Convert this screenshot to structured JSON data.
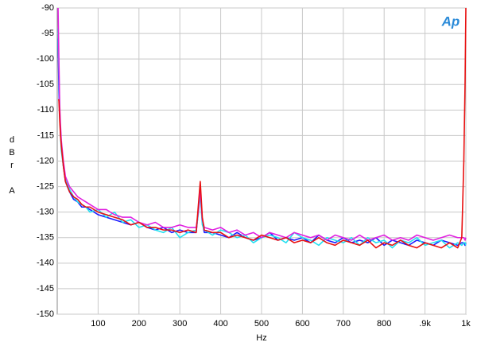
{
  "chart_data": {
    "type": "line",
    "logo": "Ap",
    "xlabel": "Hz",
    "ylabel": "dBr A",
    "xlim": [
      0,
      1000
    ],
    "ylim": [
      -150,
      -90
    ],
    "xticks": [
      100,
      200,
      300,
      400,
      500,
      600,
      700,
      800,
      {
        "value": 900,
        "label": ".9k"
      },
      {
        "value": 1000,
        "label": "1k"
      }
    ],
    "yticks": [
      -150,
      -145,
      -140,
      -135,
      -130,
      -125,
      -120,
      -115,
      -110,
      -105,
      -100,
      -95,
      -90
    ],
    "grid": true,
    "x": [
      2,
      4,
      6,
      8,
      10,
      15,
      20,
      30,
      40,
      50,
      60,
      70,
      80,
      100,
      120,
      140,
      160,
      180,
      200,
      220,
      240,
      260,
      280,
      300,
      320,
      340,
      345,
      350,
      355,
      360,
      380,
      400,
      420,
      440,
      460,
      480,
      500,
      520,
      540,
      560,
      580,
      600,
      620,
      640,
      660,
      680,
      700,
      720,
      740,
      760,
      780,
      800,
      820,
      840,
      860,
      880,
      900,
      920,
      940,
      960,
      980,
      990,
      995,
      998,
      1000
    ],
    "series": [
      {
        "name": "blue",
        "color": "#1a1aff",
        "values": [
          -96,
          -106,
          -111,
          -114,
          -117,
          -121,
          -124,
          -126,
          -127.5,
          -128,
          -129,
          -129,
          -129.5,
          -130.5,
          -131,
          -131.5,
          -132,
          -132.5,
          -132,
          -133,
          -133.5,
          -133,
          -134,
          -133.5,
          -134,
          -134,
          -130,
          -126,
          -132,
          -134,
          -134,
          -134.5,
          -135,
          -134,
          -135,
          -135.5,
          -135,
          -134,
          -135.5,
          -135,
          -135.5,
          -135,
          -136,
          -134.5,
          -135.5,
          -136,
          -135,
          -136,
          -135.5,
          -136,
          -135,
          -136.5,
          -135.5,
          -136,
          -136.5,
          -135.5,
          -136,
          -136.5,
          -135.5,
          -136,
          -136.5,
          -136,
          -136,
          -136.5,
          -136
        ]
      },
      {
        "name": "cyan",
        "color": "#22e0f0",
        "values": [
          -94,
          -102,
          -110,
          -115,
          -118,
          -121,
          -123.5,
          -125.5,
          -127,
          -128,
          -128.5,
          -129,
          -130,
          -129.5,
          -131,
          -130,
          -132,
          -131.5,
          -133,
          -132.5,
          -133.5,
          -134,
          -133,
          -135,
          -134,
          -133.5,
          -130.5,
          -126.5,
          -132.5,
          -133.5,
          -134.5,
          -133.5,
          -134,
          -135,
          -134.5,
          -136,
          -135,
          -134.5,
          -135,
          -136,
          -134,
          -135,
          -135.5,
          -136.5,
          -135,
          -135.5,
          -136,
          -135,
          -136.5,
          -135,
          -136,
          -135.5,
          -137,
          -135.5,
          -136,
          -135,
          -136.5,
          -136,
          -135.5,
          -137,
          -136,
          -136.5,
          -136,
          -136,
          -136.5
        ]
      },
      {
        "name": "magenta",
        "color": "#e020e0",
        "values": [
          -90,
          -100,
          -109,
          -113,
          -116,
          -120,
          -123,
          -125,
          -126,
          -127,
          -127.5,
          -128,
          -128.5,
          -129.5,
          -129.5,
          -130.5,
          -131,
          -131,
          -132,
          -132.5,
          -132,
          -133,
          -133,
          -132.5,
          -133,
          -133,
          -130,
          -125.5,
          -131.5,
          -133,
          -133.5,
          -133,
          -134,
          -133.5,
          -134.5,
          -134,
          -135,
          -134,
          -134.5,
          -135,
          -134,
          -134.5,
          -135,
          -134.5,
          -135.5,
          -134.5,
          -135,
          -135.5,
          -134.5,
          -135.5,
          -135,
          -134.5,
          -135.5,
          -135,
          -135.5,
          -134.5,
          -135,
          -135.5,
          -135,
          -134.5,
          -135,
          -135,
          -135,
          -135.5,
          -135
        ]
      },
      {
        "name": "red",
        "color": "#e81010",
        "values": [
          -108,
          -108,
          -112,
          -115,
          -117,
          -121,
          -124,
          -126,
          -127,
          -127.5,
          -128.5,
          -129,
          -129,
          -130,
          -130.5,
          -131,
          -131.5,
          -132.5,
          -132,
          -133,
          -133,
          -133.5,
          -133.5,
          -134,
          -133.5,
          -134,
          -129,
          -124,
          -131,
          -133.5,
          -134,
          -134,
          -135,
          -134.5,
          -135,
          -135.5,
          -134.5,
          -135,
          -135.5,
          -135,
          -136,
          -135.5,
          -136,
          -135,
          -136,
          -136.5,
          -135.5,
          -136,
          -136.5,
          -135.5,
          -137,
          -136,
          -136.5,
          -135.5,
          -136.5,
          -137,
          -136,
          -136.5,
          -137,
          -136,
          -137,
          -135,
          -120,
          -105,
          -90
        ]
      }
    ]
  }
}
